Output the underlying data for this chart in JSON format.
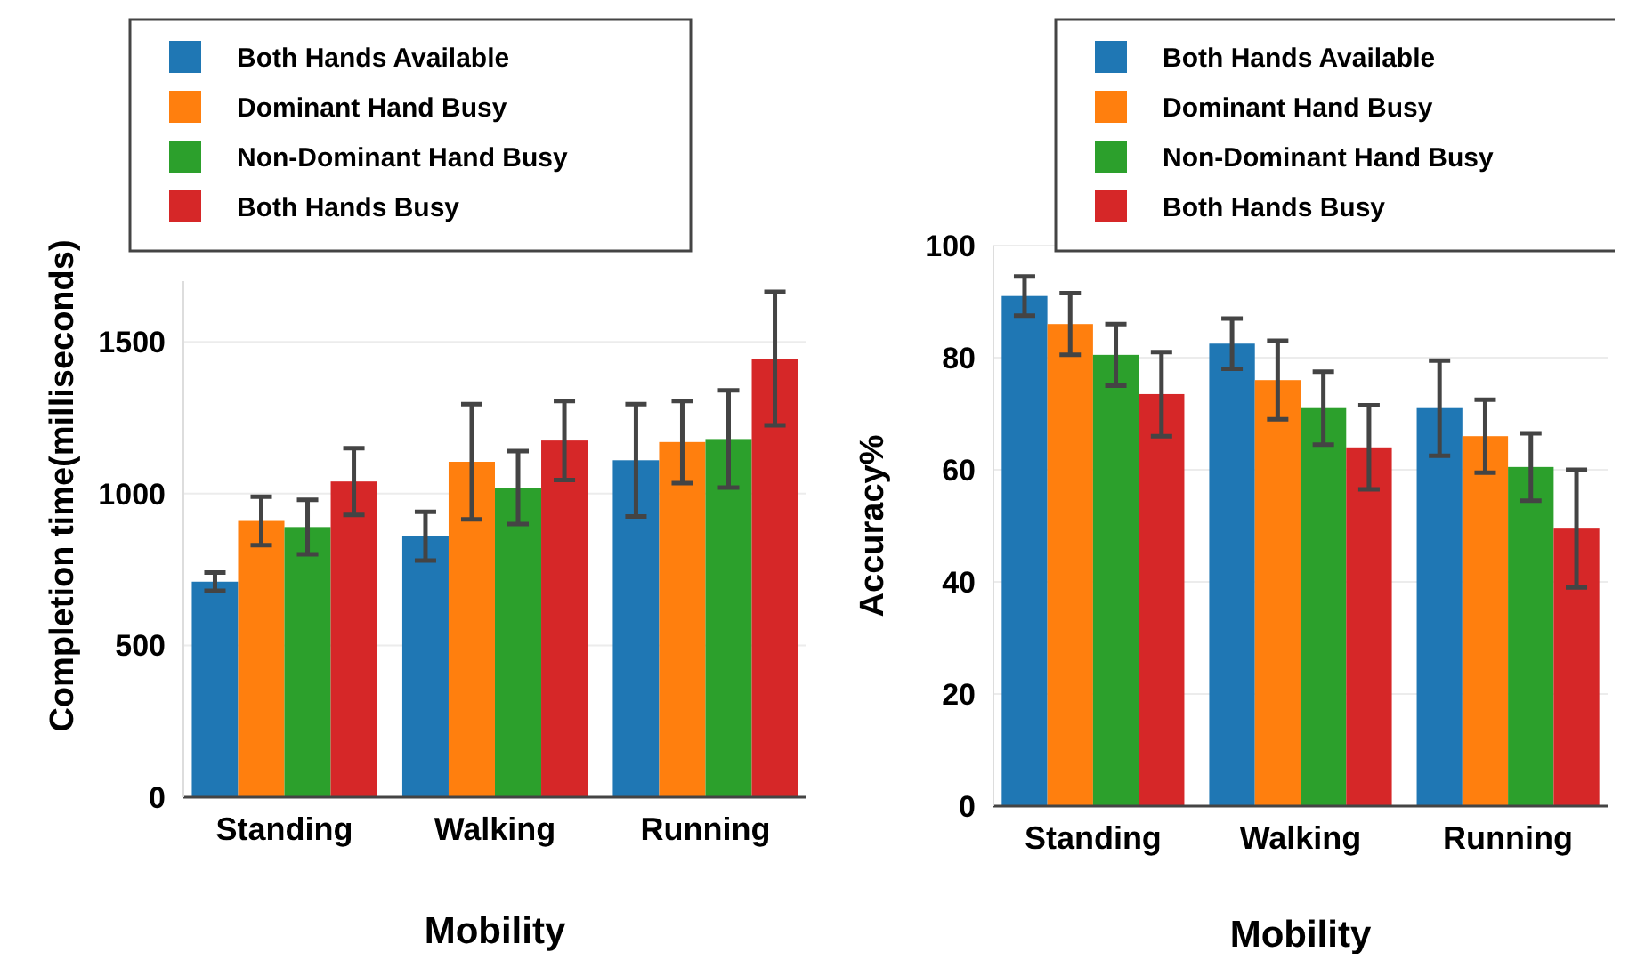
{
  "chart_data": [
    {
      "type": "bar",
      "xlabel": "Mobility",
      "ylabel": "Completion time(milliseconds)",
      "categories": [
        "Standing",
        "Walking",
        "Running"
      ],
      "ylim": [
        0,
        1700
      ],
      "yticks": [
        0,
        500,
        1000,
        1500
      ],
      "grid": "y",
      "legend": "top left",
      "series": [
        {
          "name": "Both Hands Available",
          "color": "#1f77b4",
          "values": [
            710,
            860,
            1110
          ],
          "errors": [
            30,
            80,
            185
          ]
        },
        {
          "name": "Dominant Hand Busy",
          "color": "#ff7f0e",
          "values": [
            910,
            1105,
            1170
          ],
          "errors": [
            80,
            190,
            135
          ]
        },
        {
          "name": "Non-Dominant Hand Busy",
          "color": "#2ca02c",
          "values": [
            890,
            1020,
            1180
          ],
          "errors": [
            90,
            120,
            160
          ]
        },
        {
          "name": "Both Hands Busy",
          "color": "#d62728",
          "values": [
            1040,
            1175,
            1445
          ],
          "errors": [
            110,
            130,
            220
          ]
        }
      ]
    },
    {
      "type": "bar",
      "xlabel": "Mobility",
      "ylabel": "Accuracy%",
      "categories": [
        "Standing",
        "Walking",
        "Running"
      ],
      "ylim": [
        0,
        100
      ],
      "yticks": [
        0,
        20,
        40,
        60,
        80,
        100
      ],
      "grid": "y",
      "legend": "top right",
      "series": [
        {
          "name": "Both Hands Available",
          "color": "#1f77b4",
          "values": [
            91,
            82.5,
            71
          ],
          "errors": [
            3.5,
            4.5,
            8.5
          ]
        },
        {
          "name": "Dominant Hand Busy",
          "color": "#ff7f0e",
          "values": [
            86,
            76,
            66
          ],
          "errors": [
            5.5,
            7,
            6.5
          ]
        },
        {
          "name": "Non-Dominant Hand Busy",
          "color": "#2ca02c",
          "values": [
            80.5,
            71,
            60.5
          ],
          "errors": [
            5.5,
            6.5,
            6
          ]
        },
        {
          "name": "Both Hands Busy",
          "color": "#d62728",
          "values": [
            73.5,
            64,
            49.5
          ],
          "errors": [
            7.5,
            7.5,
            10.5
          ]
        }
      ]
    }
  ]
}
